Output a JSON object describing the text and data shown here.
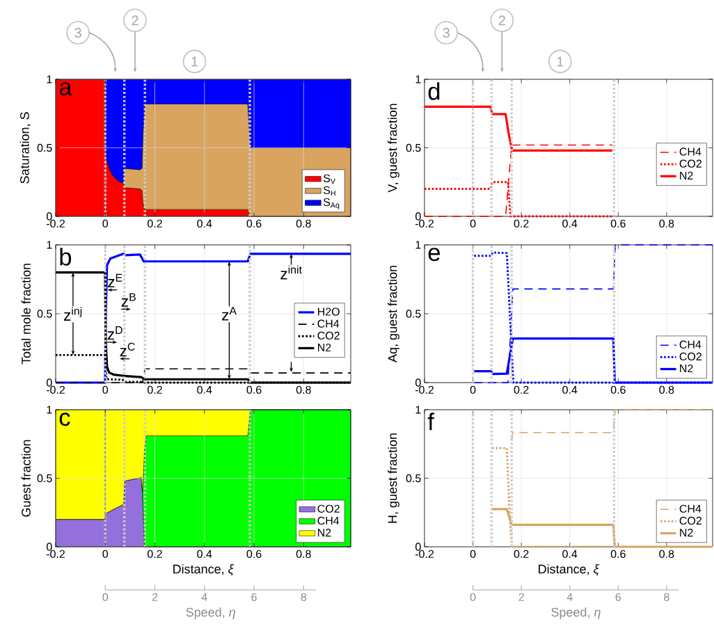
{
  "chart_data": [
    {
      "type": "area",
      "title": "a",
      "ylabel": "Saturation, S",
      "stacked": true,
      "xlim": [
        -0.2,
        0.99
      ],
      "ylim": [
        0,
        1
      ],
      "xticks": [
        -0.2,
        0,
        0.2,
        0.4,
        0.6,
        0.8
      ],
      "yticks": [
        0,
        0.5,
        1
      ],
      "grid": true,
      "legend": "bottom right",
      "x": [
        -0.2,
        -0.001,
        0.0,
        0.005,
        0.015,
        0.03,
        0.05,
        0.074,
        0.076,
        0.14,
        0.148,
        0.152,
        0.16,
        0.575,
        0.585,
        0.99
      ],
      "series": [
        {
          "name": "S$_{V}$",
          "color": "#ff0000",
          "values": [
            1,
            1,
            0.5,
            0.42,
            0.35,
            0.3,
            0.26,
            0.24,
            0.21,
            0.2,
            0.19,
            0.1,
            0.05,
            0.05,
            0,
            0
          ]
        },
        {
          "name": "S$_{H}$",
          "color": "#d8a460",
          "values": [
            null,
            null,
            null,
            null,
            null,
            null,
            null,
            null,
            0.14,
            0.14,
            0.16,
            0.5,
            0.77,
            0.77,
            0.5,
            0.5
          ]
        },
        {
          "name": "S$_{Aq}$",
          "color": "#0000ff",
          "values": [
            null,
            null,
            0.5,
            0.58,
            0.65,
            0.7,
            0.74,
            0.76,
            0.65,
            0.66,
            0.65,
            0.4,
            0.18,
            0.18,
            0.5,
            0.5
          ]
        }
      ],
      "ref_lines": [
        {
          "axis": "x",
          "value": 0.0,
          "color": "#cccccc",
          "line_style": "dotted"
        },
        {
          "axis": "x",
          "value": 0.077,
          "color": "#cccccc",
          "line_style": "dotted"
        },
        {
          "axis": "x",
          "value": 0.16,
          "color": "#cccccc",
          "line_style": "dotted"
        },
        {
          "axis": "x",
          "value": 0.583,
          "color": "#cccccc",
          "line_style": "dotted"
        },
        {
          "axis": "x",
          "value": 0.0,
          "color": "#000000",
          "line_style": "dashed"
        }
      ],
      "annotations": [
        "3",
        "2",
        "1"
      ]
    },
    {
      "type": "line",
      "title": "b",
      "ylabel": "Total mole fraction",
      "xlim": [
        -0.2,
        0.99
      ],
      "ylim": [
        0,
        1
      ],
      "xticks": [
        -0.2,
        0,
        0.2,
        0.4,
        0.6,
        0.8
      ],
      "yticks": [
        0,
        0.5,
        1
      ],
      "grid": true,
      "legend": "right",
      "series": [
        {
          "name": "H2O",
          "color": "#0000ff",
          "line_style": "solid",
          "x": [
            -0.2,
            -0.001,
            0.002,
            0.007,
            0.02,
            0.05,
            0.074,
            0.08,
            0.14,
            0.155,
            0.575,
            0.585,
            0.99
          ],
          "values": [
            0,
            0,
            0.5,
            0.85,
            0.9,
            0.92,
            0.935,
            0.925,
            0.93,
            0.88,
            0.88,
            0.935,
            0.935
          ]
        },
        {
          "name": "CH4",
          "color": "#000000",
          "line_style": "dashed",
          "x": [
            -0.2,
            0.15,
            0.16,
            0.575,
            0.585,
            0.99
          ],
          "values": [
            0,
            0,
            0.1,
            0.1,
            0.07,
            0.07
          ]
        },
        {
          "name": "CO2",
          "color": "#000000",
          "line_style": "dotted",
          "x": [
            -0.2,
            -0.001,
            0.005,
            0.07,
            0.08,
            0.15,
            0.16,
            0.99
          ],
          "values": [
            0.2,
            0.2,
            0.025,
            0.02,
            0.005,
            0.005,
            0,
            0
          ]
        },
        {
          "name": "N2",
          "color": "#000000",
          "line_style": "solid",
          "x": [
            -0.2,
            -0.001,
            0.002,
            0.007,
            0.015,
            0.035,
            0.076,
            0.145,
            0.16,
            0.575,
            0.585,
            0.99
          ],
          "values": [
            0.8,
            0.8,
            0.3,
            0.116,
            0.074,
            0.057,
            0.049,
            0.04,
            0.024,
            0.024,
            0,
            0
          ]
        }
      ],
      "ref_lines": [
        {
          "axis": "x",
          "value": 0.0,
          "color": "#cccccc",
          "line_style": "dotted"
        },
        {
          "axis": "x",
          "value": 0.077,
          "color": "#cccccc",
          "line_style": "dotted"
        },
        {
          "axis": "x",
          "value": 0.16,
          "color": "#cccccc",
          "line_style": "dotted"
        },
        {
          "axis": "x",
          "value": 0.583,
          "color": "#cccccc",
          "line_style": "dotted"
        }
      ],
      "annotations": [
        {
          "text": "z$^{inj}$",
          "x": -0.13,
          "y": 0.8
        },
        "z$^{E}$",
        "z$^{B}$",
        "z$^{D}$",
        "z$^{C}$",
        {
          "text": "z$^{A}$",
          "x": 0.5,
          "y": 0.88
        },
        "z$^{init}$"
      ]
    },
    {
      "type": "area",
      "title": "c",
      "ylabel": "Guest fraction",
      "xlabel": "Distance, *ξ*",
      "stacked": true,
      "xlim": [
        -0.2,
        0.99
      ],
      "ylim": [
        0,
        1
      ],
      "xticks": [
        -0.2,
        0,
        0.2,
        0.4,
        0.6,
        0.8
      ],
      "yticks": [
        0,
        0.5,
        1
      ],
      "grid": true,
      "legend": "bottom right",
      "x": [
        -0.2,
        -0.001,
        0.0,
        0.03,
        0.074,
        0.078,
        0.145,
        0.15,
        0.158,
        0.165,
        0.575,
        0.585,
        0.99
      ],
      "series": [
        {
          "name": "CO2",
          "color": "#9370db",
          "values": [
            0.2,
            0.2,
            0.24,
            0.27,
            0.31,
            0.48,
            0.505,
            0.4,
            0,
            0,
            0,
            0,
            0
          ]
        },
        {
          "name": "CH4",
          "color": "#00ff00",
          "values": [
            0,
            0,
            0,
            0,
            0,
            0,
            0,
            0,
            0.7,
            0.81,
            0.81,
            1,
            1
          ]
        },
        {
          "name": "N2",
          "color": "#ffff00",
          "values": [
            0.8,
            0.8,
            0.76,
            0.73,
            0.69,
            0.52,
            0.495,
            0.6,
            0.3,
            0.19,
            0.19,
            0,
            0
          ]
        }
      ],
      "ref_lines": [
        {
          "axis": "x",
          "value": 0.0,
          "color": "#cccccc",
          "line_style": "dotted"
        },
        {
          "axis": "x",
          "value": 0.077,
          "color": "#cccccc",
          "line_style": "dotted"
        },
        {
          "axis": "x",
          "value": 0.16,
          "color": "#cccccc",
          "line_style": "dotted"
        },
        {
          "axis": "x",
          "value": 0.583,
          "color": "#cccccc",
          "line_style": "dotted"
        },
        {
          "axis": "x",
          "value": 0.0,
          "color": "#000000",
          "line_style": "dashed"
        }
      ],
      "x2lim": [
        0,
        8.5
      ],
      "x2ticks": [
        0,
        2,
        4,
        6,
        8
      ],
      "x2label": "Speed, *η*"
    },
    {
      "type": "line",
      "title": "d",
      "ylabel": "V, guest fraction",
      "xlim": [
        -0.2,
        0.99
      ],
      "ylim": [
        0,
        1
      ],
      "xticks": [
        -0.2,
        0,
        0.2,
        0.4,
        0.6,
        0.8
      ],
      "yticks": [
        0,
        0.5,
        1
      ],
      "grid": true,
      "legend": "right",
      "series": [
        {
          "name": "CH4",
          "color": "#ff0000",
          "line_style": "dashed",
          "x": [
            -0.2,
            0.135,
            0.16,
            0.576
          ],
          "values": [
            0,
            0,
            0.52,
            0.52
          ]
        },
        {
          "name": "CO2",
          "color": "#ff0000",
          "line_style": "dotted",
          "x": [
            -0.2,
            0.072,
            0.08,
            0.145,
            0.155,
            0.576
          ],
          "values": [
            0.2,
            0.2,
            0.25,
            0.25,
            0,
            0
          ]
        },
        {
          "name": "N2",
          "color": "#ff0000",
          "line_style": "solid",
          "x": [
            -0.2,
            0.072,
            0.08,
            0.135,
            0.148,
            0.162,
            0.576
          ],
          "values": [
            0.8,
            0.8,
            0.747,
            0.745,
            0.6,
            0.48,
            0.48
          ]
        }
      ],
      "ref_lines": [
        {
          "axis": "x",
          "value": 0.0,
          "color": "#cccccc",
          "line_style": "dotted"
        },
        {
          "axis": "x",
          "value": 0.077,
          "color": "#cccccc",
          "line_style": "dotted"
        },
        {
          "axis": "x",
          "value": 0.16,
          "color": "#cccccc",
          "line_style": "dotted"
        },
        {
          "axis": "x",
          "value": 0.583,
          "color": "#cccccc",
          "line_style": "dotted"
        }
      ],
      "annotations": [
        "3",
        "2",
        "1"
      ]
    },
    {
      "type": "line",
      "title": "e",
      "ylabel": "Aq, guest fraction",
      "xlim": [
        -0.2,
        0.99
      ],
      "ylim": [
        0,
        1
      ],
      "xticks": [
        -0.2,
        0,
        0.2,
        0.4,
        0.6,
        0.8
      ],
      "yticks": [
        0,
        0.5,
        1
      ],
      "grid": true,
      "legend": "bottom right",
      "series": [
        {
          "name": "CH4",
          "color": "#0000ff",
          "line_style": "dashed",
          "x": [
            0.005,
            0.145,
            0.165,
            0.58,
            0.588,
            0.99
          ],
          "values": [
            0,
            0,
            0.68,
            0.68,
            1,
            1
          ]
        },
        {
          "name": "CO2",
          "color": "#0000ff",
          "line_style": "dotted",
          "x": [
            0.005,
            0.075,
            0.082,
            0.14,
            0.167,
            0.99
          ],
          "values": [
            0.92,
            0.92,
            0.945,
            0.94,
            0,
            0
          ]
        },
        {
          "name": "N2",
          "color": "#0000ff",
          "line_style": "solid",
          "x": [
            0.005,
            0.075,
            0.082,
            0.14,
            0.165,
            0.58,
            0.586,
            0.99
          ],
          "values": [
            0.083,
            0.083,
            0.062,
            0.065,
            0.32,
            0.32,
            0,
            0
          ]
        }
      ],
      "ref_lines": [
        {
          "axis": "x",
          "value": 0.0,
          "color": "#cccccc",
          "line_style": "dotted"
        },
        {
          "axis": "x",
          "value": 0.077,
          "color": "#cccccc",
          "line_style": "dotted"
        },
        {
          "axis": "x",
          "value": 0.16,
          "color": "#cccccc",
          "line_style": "dotted"
        },
        {
          "axis": "x",
          "value": 0.583,
          "color": "#cccccc",
          "line_style": "dotted"
        }
      ]
    },
    {
      "type": "line",
      "title": "f",
      "ylabel": "H, guest fraction",
      "xlabel": "Distance, *ξ*",
      "xlim": [
        -0.2,
        0.99
      ],
      "ylim": [
        0,
        1
      ],
      "xticks": [
        -0.2,
        0,
        0.2,
        0.4,
        0.6,
        0.8
      ],
      "yticks": [
        0,
        0.5,
        1
      ],
      "grid": true,
      "legend": "bottom right",
      "series": [
        {
          "name": "CH4",
          "color": "#d8a460",
          "line_style": "dashed",
          "x": [
            0.16,
            0.165,
            0.58,
            0.588,
            0.99
          ],
          "values": [
            0.78,
            0.834,
            0.834,
            1,
            1
          ]
        },
        {
          "name": "CO2",
          "color": "#d8a460",
          "line_style": "dotted",
          "x": [
            0.079,
            0.14,
            0.15,
            0.16,
            0.58
          ],
          "values": [
            0.72,
            0.72,
            0.3,
            0,
            0
          ]
        },
        {
          "name": "N2",
          "color": "#d8a460",
          "line_style": "solid",
          "x": [
            0.079,
            0.14,
            0.16,
            0.58,
            0.586,
            0.99
          ],
          "values": [
            0.275,
            0.275,
            0.16,
            0.16,
            0,
            0
          ]
        }
      ],
      "ref_lines": [
        {
          "axis": "x",
          "value": 0.0,
          "color": "#cccccc",
          "line_style": "dotted"
        },
        {
          "axis": "x",
          "value": 0.077,
          "color": "#cccccc",
          "line_style": "dotted"
        },
        {
          "axis": "x",
          "value": 0.16,
          "color": "#cccccc",
          "line_style": "dotted"
        },
        {
          "axis": "x",
          "value": 0.583,
          "color": "#cccccc",
          "line_style": "dotted"
        }
      ],
      "x2lim": [
        0,
        8.5
      ],
      "x2ticks": [
        0,
        2,
        4,
        6,
        8
      ],
      "x2label": "Speed, *η*"
    }
  ]
}
